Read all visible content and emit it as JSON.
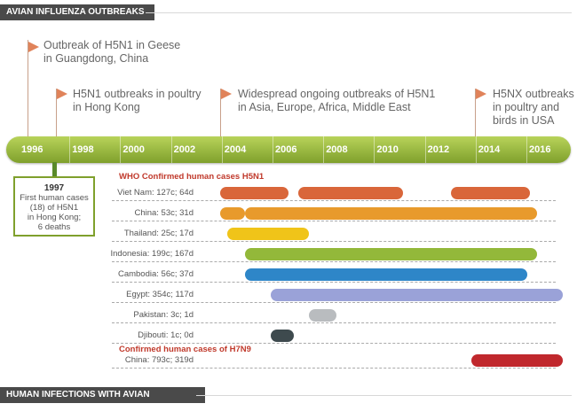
{
  "headers": {
    "top": "AVIAN INFLUENZA OUTBREAKS",
    "bottom": "HUMAN INFECTIONS WITH AVIAN INFLUENZA"
  },
  "events": [
    {
      "line1": "Outbreak of H5N1 in Geese",
      "line2": "in Guangdong, China",
      "line3": ""
    },
    {
      "line1": "H5N1 outbreaks in poultry",
      "line2": "in Hong Kong",
      "line3": ""
    },
    {
      "line1": "Widespread ongoing outbreaks of H5N1",
      "line2": "in Asia, Europe, Africa, Middle East",
      "line3": ""
    },
    {
      "line1": "H5NX outbreaks",
      "line2": "in poultry and",
      "line3": "birds in USA"
    }
  ],
  "years": [
    "1996",
    "1998",
    "2000",
    "2002",
    "2004",
    "2006",
    "2008",
    "2010",
    "2012",
    "2014",
    "2016"
  ],
  "box1997": {
    "year": "1997",
    "line1": "First human cases",
    "line2": "(18) of H5N1",
    "line3": "in Hong Kong;",
    "line4": "6 deaths"
  },
  "h5n1": {
    "title": "WHO Confirmed human cases H5N1",
    "rows": [
      {
        "label": "Viet Nam: 127c; 64d",
        "color": "#d9663a",
        "spans": [
          [
            2003.4,
            2006.1
          ],
          [
            2006.5,
            2010.6
          ],
          [
            2012.5,
            2015.6
          ]
        ]
      },
      {
        "label": "China: 53c; 31d",
        "color": "#e89a2c",
        "spans": [
          [
            2003.4,
            2004.4
          ],
          [
            2004.4,
            2015.9
          ]
        ]
      },
      {
        "label": "Thailand: 25c; 17d",
        "color": "#f0c419",
        "spans": [
          [
            2003.7,
            2006.9
          ]
        ]
      },
      {
        "label": "Indonesia: 199c; 167d",
        "color": "#93b83a",
        "spans": [
          [
            2004.4,
            2015.9
          ]
        ]
      },
      {
        "label": "Cambodia: 56c; 37d",
        "color": "#2e86c8",
        "spans": [
          [
            2004.4,
            2015.5
          ]
        ]
      },
      {
        "label": "Egypt: 354c; 117d",
        "color": "#9aa2d8",
        "spans": [
          [
            2005.4,
            2016.9
          ]
        ]
      },
      {
        "label": "Pakistan: 3c; 1d",
        "color": "#b9bcbf",
        "spans": [
          [
            2006.9,
            2008.0
          ]
        ]
      },
      {
        "label": "Djibouti: 1c; 0d",
        "color": "#3e4a4e",
        "spans": [
          [
            2005.4,
            2006.3
          ]
        ]
      }
    ]
  },
  "h7n9": {
    "title": "Confirmed human cases of H7N9",
    "rows": [
      {
        "label": "China: 793c; 319d",
        "color": "#c0282d",
        "spans": [
          [
            2013.3,
            2016.9
          ]
        ]
      }
    ]
  },
  "colors": {
    "timeline": "#8bb13a",
    "flag": "#e0835a",
    "section_title": "#c0392b"
  }
}
